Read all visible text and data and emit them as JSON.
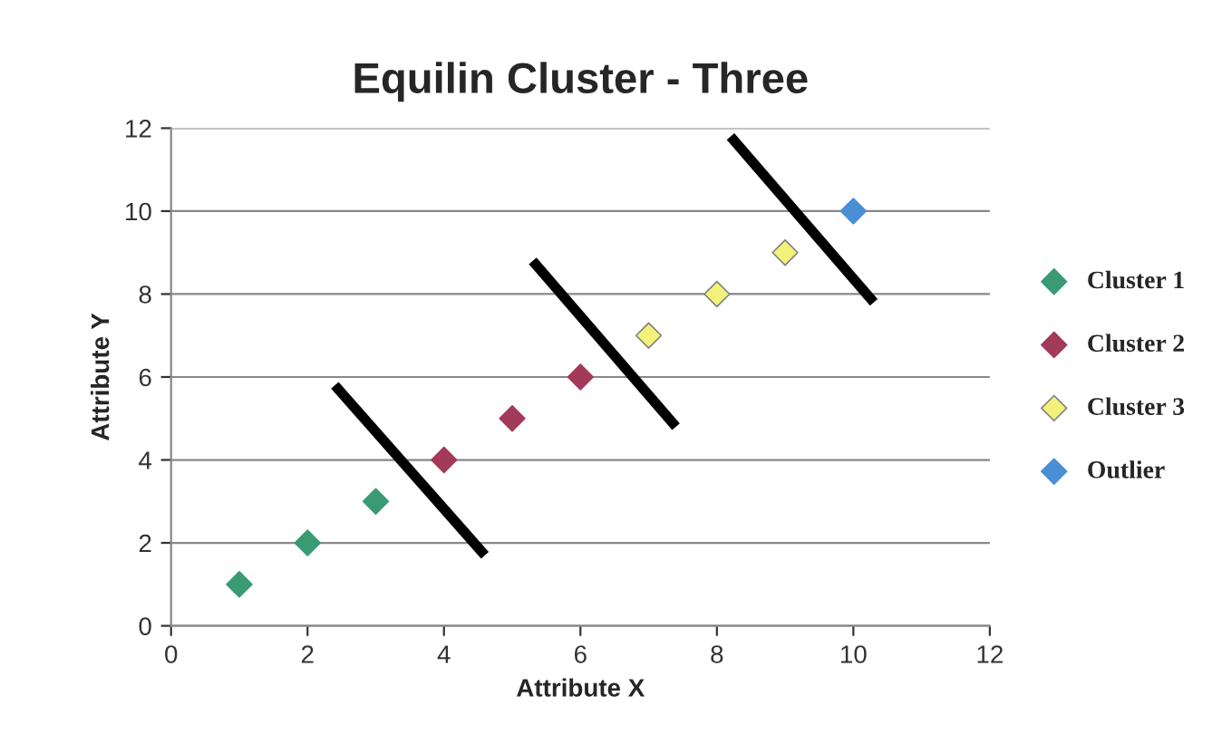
{
  "chart_data": {
    "type": "scatter",
    "title": "Equilin Cluster - Three",
    "xlabel": "Attribute X",
    "ylabel": "Attribute Y",
    "xlim": [
      0,
      12
    ],
    "ylim": [
      0,
      12
    ],
    "xticks": [
      0,
      2,
      4,
      6,
      8,
      10,
      12
    ],
    "yticks": [
      0,
      2,
      4,
      6,
      8,
      10,
      12
    ],
    "grid": "y",
    "legend": "right",
    "marker": "diamond",
    "series": [
      {
        "name": "Cluster 1",
        "color": "#3a9a74",
        "x": [
          1,
          2,
          3
        ],
        "values": [
          1,
          2,
          3
        ]
      },
      {
        "name": "Cluster 2",
        "color": "#a33a5a",
        "x": [
          4,
          5,
          6
        ],
        "values": [
          4,
          5,
          6
        ]
      },
      {
        "name": "Cluster 3",
        "color": "#f2f27a",
        "x": [
          7,
          8,
          9
        ],
        "values": [
          7,
          8,
          9
        ]
      },
      {
        "name": "Outlier",
        "color": "#4a8fd6",
        "x": [
          10
        ],
        "values": [
          10
        ]
      },
      {
        "type": "line",
        "marker": "none",
        "color": "#000000",
        "x": [
          2.4,
          4.6
        ],
        "values": [
          5.8,
          1.7
        ]
      },
      {
        "type": "line",
        "marker": "none",
        "color": "#000000",
        "x": [
          5.3,
          7.4
        ],
        "values": [
          8.8,
          4.8
        ]
      },
      {
        "type": "line",
        "marker": "none",
        "color": "#000000",
        "x": [
          8.2,
          10.3
        ],
        "values": [
          11.8,
          7.8
        ]
      }
    ]
  }
}
